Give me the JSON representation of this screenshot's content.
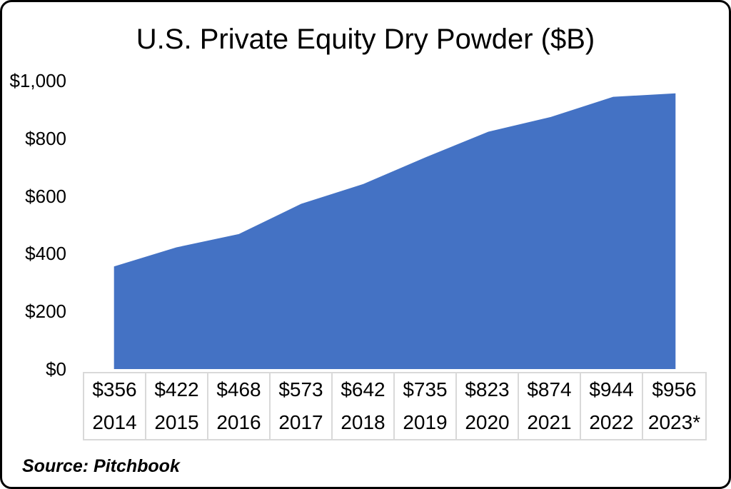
{
  "chart_data": {
    "type": "area",
    "title": "U.S. Private Equity Dry Powder ($B)",
    "categories": [
      "2014",
      "2015",
      "2016",
      "2017",
      "2018",
      "2019",
      "2020",
      "2021",
      "2022",
      "2023*"
    ],
    "values": [
      356,
      422,
      468,
      573,
      642,
      735,
      823,
      874,
      944,
      956
    ],
    "value_labels": [
      "$356",
      "$422",
      "$468",
      "$573",
      "$642",
      "$735",
      "$823",
      "$874",
      "$944",
      "$956"
    ],
    "xlabel": "",
    "ylabel": "",
    "ylim": [
      0,
      1000
    ],
    "y_ticks": [
      {
        "value": 1000,
        "label": "$1,000"
      },
      {
        "value": 800,
        "label": "$800"
      },
      {
        "value": 600,
        "label": "$600"
      },
      {
        "value": 400,
        "label": "$400"
      },
      {
        "value": 200,
        "label": "$200"
      },
      {
        "value": 0,
        "label": "$0"
      }
    ],
    "grid": false,
    "legend_position": "none",
    "area_color": "#4472C4",
    "table_border_color": "#D9D9D9"
  },
  "source_note": "Source: Pitchbook"
}
